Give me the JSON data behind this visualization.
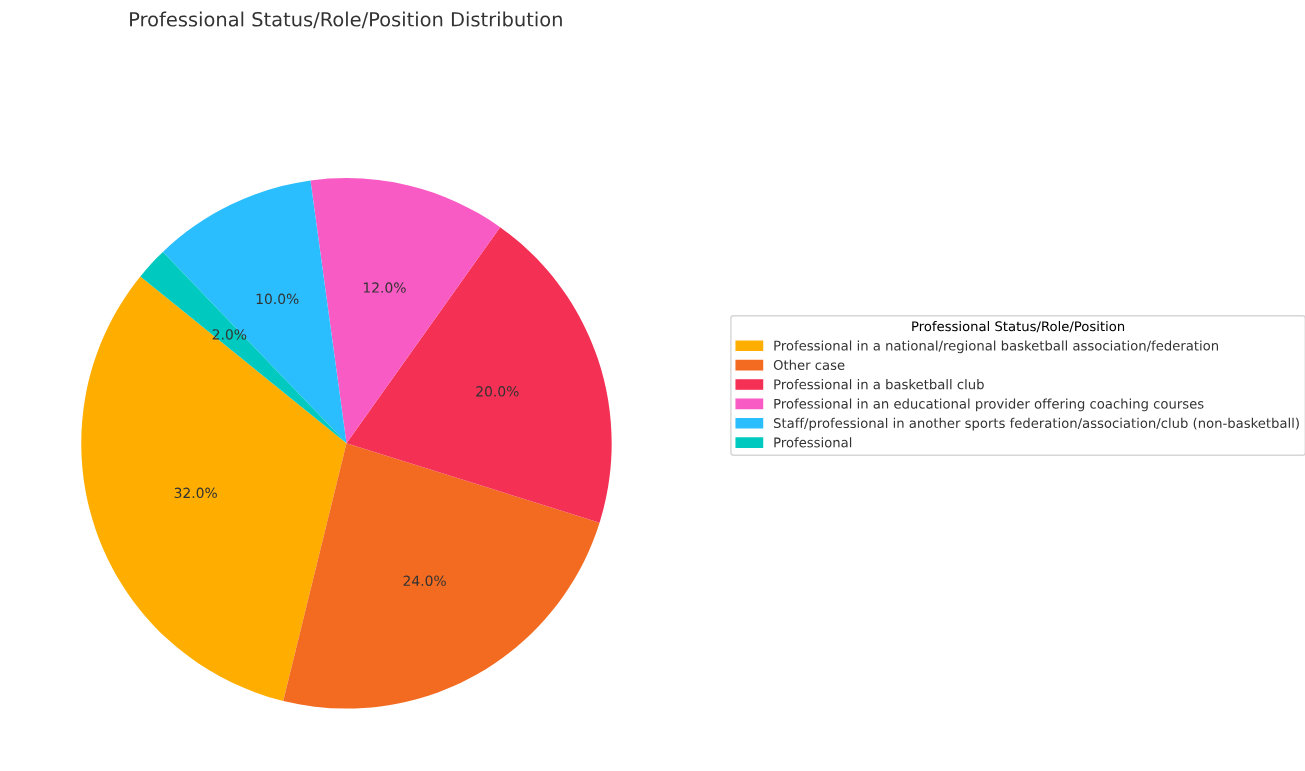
{
  "chart_data": {
    "type": "pie",
    "title": "Professional Status/Role/Position Distribution",
    "legend_title": "Professional Status/Role/Position",
    "categories": [
      "Professional in a national/regional basketball association/federation",
      "Other case",
      "Professional in a basketball club",
      "Professional in an educational provider offering coaching courses",
      "Staff/professional in another sports federation/association/club (non-basketball)",
      "Professional"
    ],
    "values": [
      32,
      24,
      20,
      12,
      10,
      2
    ],
    "colors": [
      "#ffae00",
      "#f26b21",
      "#f43155",
      "#f95bc4",
      "#2bbeff",
      "#00c9bf"
    ],
    "value_labels": [
      "32.0%",
      "24.0%",
      "20.0%",
      "12.0%",
      "10.0%",
      "2.0%"
    ],
    "legend": "right"
  }
}
